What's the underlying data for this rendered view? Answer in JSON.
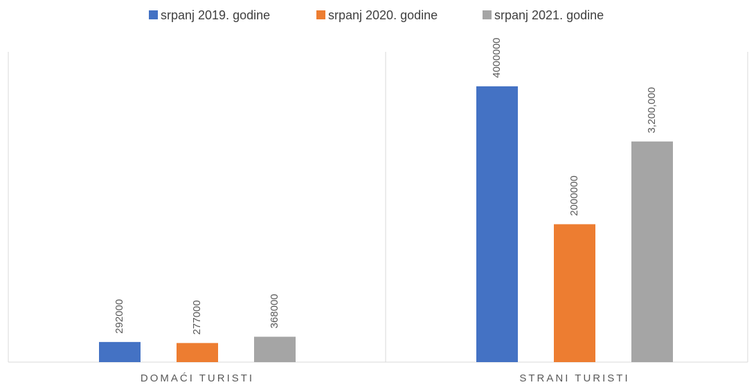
{
  "chart_data": {
    "type": "bar",
    "categories": [
      "DOMAĆI TURISTI",
      "STRANI TURISTI"
    ],
    "series": [
      {
        "name": "srpanj 2019. godine",
        "color": "#4472c4",
        "values": [
          292000,
          4000000
        ]
      },
      {
        "name": "srpanj 2020. godine",
        "color": "#ed7d31",
        "values": [
          277000,
          2000000
        ]
      },
      {
        "name": "srpanj 2021. godine",
        "color": "#a5a5a5",
        "values": [
          368000,
          3200000
        ],
        "value_labels": [
          "368000",
          "3,200,000"
        ]
      }
    ],
    "ylim": [
      0,
      4500000
    ],
    "legend": "top"
  }
}
